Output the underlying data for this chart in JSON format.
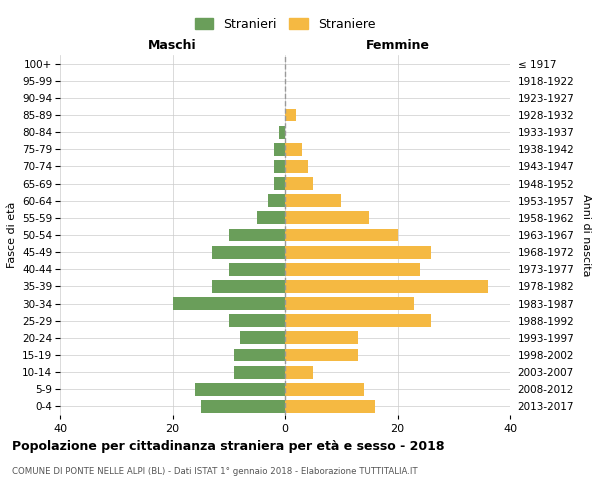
{
  "age_groups": [
    "0-4",
    "5-9",
    "10-14",
    "15-19",
    "20-24",
    "25-29",
    "30-34",
    "35-39",
    "40-44",
    "45-49",
    "50-54",
    "55-59",
    "60-64",
    "65-69",
    "70-74",
    "75-79",
    "80-84",
    "85-89",
    "90-94",
    "95-99",
    "100+"
  ],
  "birth_years": [
    "2013-2017",
    "2008-2012",
    "2003-2007",
    "1998-2002",
    "1993-1997",
    "1988-1992",
    "1983-1987",
    "1978-1982",
    "1973-1977",
    "1968-1972",
    "1963-1967",
    "1958-1962",
    "1953-1957",
    "1948-1952",
    "1943-1947",
    "1938-1942",
    "1933-1937",
    "1928-1932",
    "1923-1927",
    "1918-1922",
    "≤ 1917"
  ],
  "maschi": [
    15,
    16,
    9,
    9,
    8,
    10,
    20,
    13,
    10,
    13,
    10,
    5,
    3,
    2,
    2,
    2,
    1,
    0,
    0,
    0,
    0
  ],
  "femmine": [
    16,
    14,
    5,
    13,
    13,
    26,
    23,
    36,
    24,
    26,
    20,
    15,
    10,
    5,
    4,
    3,
    0,
    2,
    0,
    0,
    0
  ],
  "color_maschi": "#6a9e5a",
  "color_femmine": "#f5b942",
  "background_color": "#ffffff",
  "grid_color": "#cccccc",
  "title": "Popolazione per cittadinanza straniera per età e sesso - 2018",
  "subtitle": "COMUNE DI PONTE NELLE ALPI (BL) - Dati ISTAT 1° gennaio 2018 - Elaborazione TUTTITALIA.IT",
  "xlabel_left": "Maschi",
  "xlabel_right": "Femmine",
  "ylabel_left": "Fasce di età",
  "ylabel_right": "Anni di nascita",
  "legend_maschi": "Stranieri",
  "legend_femmine": "Straniere",
  "xlim": 40,
  "dashed_line_color": "#999999"
}
